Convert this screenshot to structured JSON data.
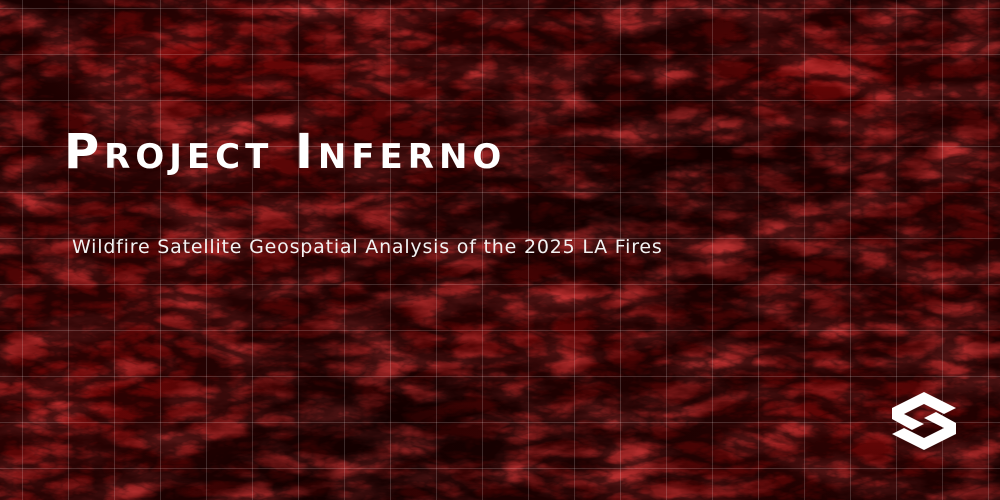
{
  "banner": {
    "title": "Project Inferno",
    "subtitle": "Wildfire Satellite Geospatial Analysis of the 2025 LA Fires",
    "logo_icon": "s-hexagon-logo-icon",
    "colors": {
      "background": "#3a0303",
      "terrain_highlight": "#8a0c0c",
      "text": "#ffffff",
      "grid": "rgba(255,255,255,0.16)"
    }
  }
}
